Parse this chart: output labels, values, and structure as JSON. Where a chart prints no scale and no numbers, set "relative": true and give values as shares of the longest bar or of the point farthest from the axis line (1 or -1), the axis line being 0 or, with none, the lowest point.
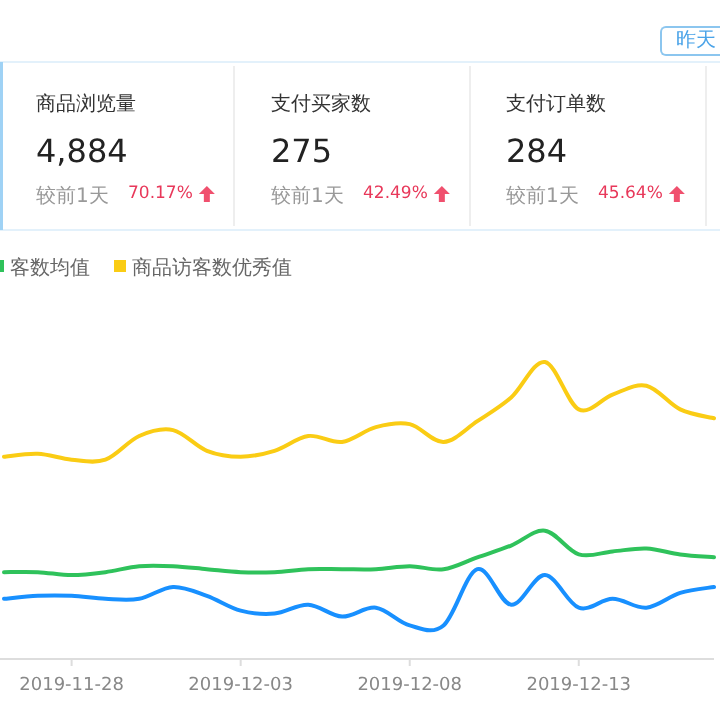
{
  "chart_data": {
    "type": "line",
    "relative": true,
    "legend": "top left",
    "marker": "none",
    "line_style": "solid",
    "annotations": [
      "昨天",
      "商品浏览量",
      "4,884",
      "较前1天",
      "70.17%",
      "支付买家数",
      "275",
      "较前1天",
      "42.49%",
      "支付订单数",
      "284",
      "较前1天",
      "45.64%"
    ],
    "x": [
      "2019-11-26",
      "2019-11-27",
      "2019-11-28",
      "2019-11-29",
      "2019-11-30",
      "2019-12-01",
      "2019-12-02",
      "2019-12-03",
      "2019-12-04",
      "2019-12-05",
      "2019-12-06",
      "2019-12-07",
      "2019-12-08",
      "2019-12-09",
      "2019-12-10",
      "2019-12-11",
      "2019-12-12",
      "2019-12-13",
      "2019-12-14",
      "2019-12-15",
      "2019-12-16",
      "2019-12-17"
    ],
    "xlim": [
      "2019-11-26",
      "2019-12-17"
    ],
    "xticks": [
      "2019-11-28",
      "2019-12-03",
      "2019-12-08",
      "2019-12-13"
    ],
    "series": [
      {
        "color": "#1890ff",
        "values": [
          0.2,
          0.21,
          0.21,
          0.2,
          0.2,
          0.24,
          0.21,
          0.16,
          0.15,
          0.18,
          0.14,
          0.17,
          0.11,
          0.11,
          0.3,
          0.18,
          0.28,
          0.17,
          0.2,
          0.17,
          0.22,
          0.24
        ]
      },
      {
        "name": "客数均值",
        "color": "#2fc25b",
        "values": [
          0.29,
          0.29,
          0.28,
          0.29,
          0.31,
          0.31,
          0.3,
          0.29,
          0.29,
          0.3,
          0.3,
          0.3,
          0.31,
          0.3,
          0.34,
          0.38,
          0.43,
          0.35,
          0.36,
          0.37,
          0.35,
          0.34
        ]
      },
      {
        "name": "商品访客数优秀值",
        "color": "#facc14",
        "values": [
          0.68,
          0.69,
          0.67,
          0.67,
          0.75,
          0.77,
          0.7,
          0.68,
          0.7,
          0.75,
          0.73,
          0.78,
          0.79,
          0.73,
          0.8,
          0.88,
          1.0,
          0.84,
          0.89,
          0.92,
          0.84,
          0.81
        ]
      }
    ]
  }
}
